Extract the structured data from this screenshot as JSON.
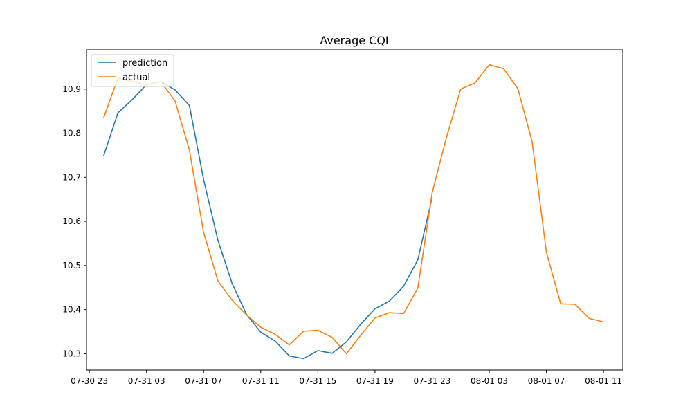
{
  "chart_data": {
    "type": "line",
    "title": "Average CQI",
    "xlabel": "",
    "ylabel": "",
    "x_ticks": [
      "07-30 23",
      "07-31 03",
      "07-31 07",
      "07-31 11",
      "07-31 15",
      "07-31 19",
      "07-31 23",
      "08-01 03",
      "08-01 07",
      "08-01 11"
    ],
    "y_ticks": [
      "10.3",
      "10.4",
      "10.5",
      "10.6",
      "10.7",
      "10.8",
      "10.9"
    ],
    "x_start": "2023-07-30 23:00",
    "ylim": [
      10.263,
      10.989
    ],
    "grid": false,
    "legend_position": "top-left",
    "series": [
      {
        "name": "prediction",
        "color": "#1f77b4",
        "values": [
          10.749,
          10.846,
          10.876,
          10.91,
          10.917,
          10.898,
          10.863,
          10.695,
          10.557,
          10.459,
          10.389,
          10.349,
          10.329,
          10.295,
          10.289,
          10.307,
          10.301,
          10.327,
          10.367,
          10.402,
          10.419,
          10.453,
          10.513,
          10.655
        ]
      },
      {
        "name": "actual",
        "color": "#ff7f0e",
        "values": [
          10.835,
          10.925,
          10.917,
          10.91,
          10.917,
          10.873,
          10.762,
          10.575,
          10.465,
          10.421,
          10.388,
          10.36,
          10.344,
          10.32,
          10.351,
          10.353,
          10.337,
          10.3,
          10.342,
          10.381,
          10.393,
          10.391,
          10.449,
          10.665,
          10.79,
          10.9,
          10.914,
          10.955,
          10.946,
          10.901,
          10.781,
          10.53,
          10.413,
          10.412,
          10.38,
          10.372
        ]
      }
    ]
  }
}
